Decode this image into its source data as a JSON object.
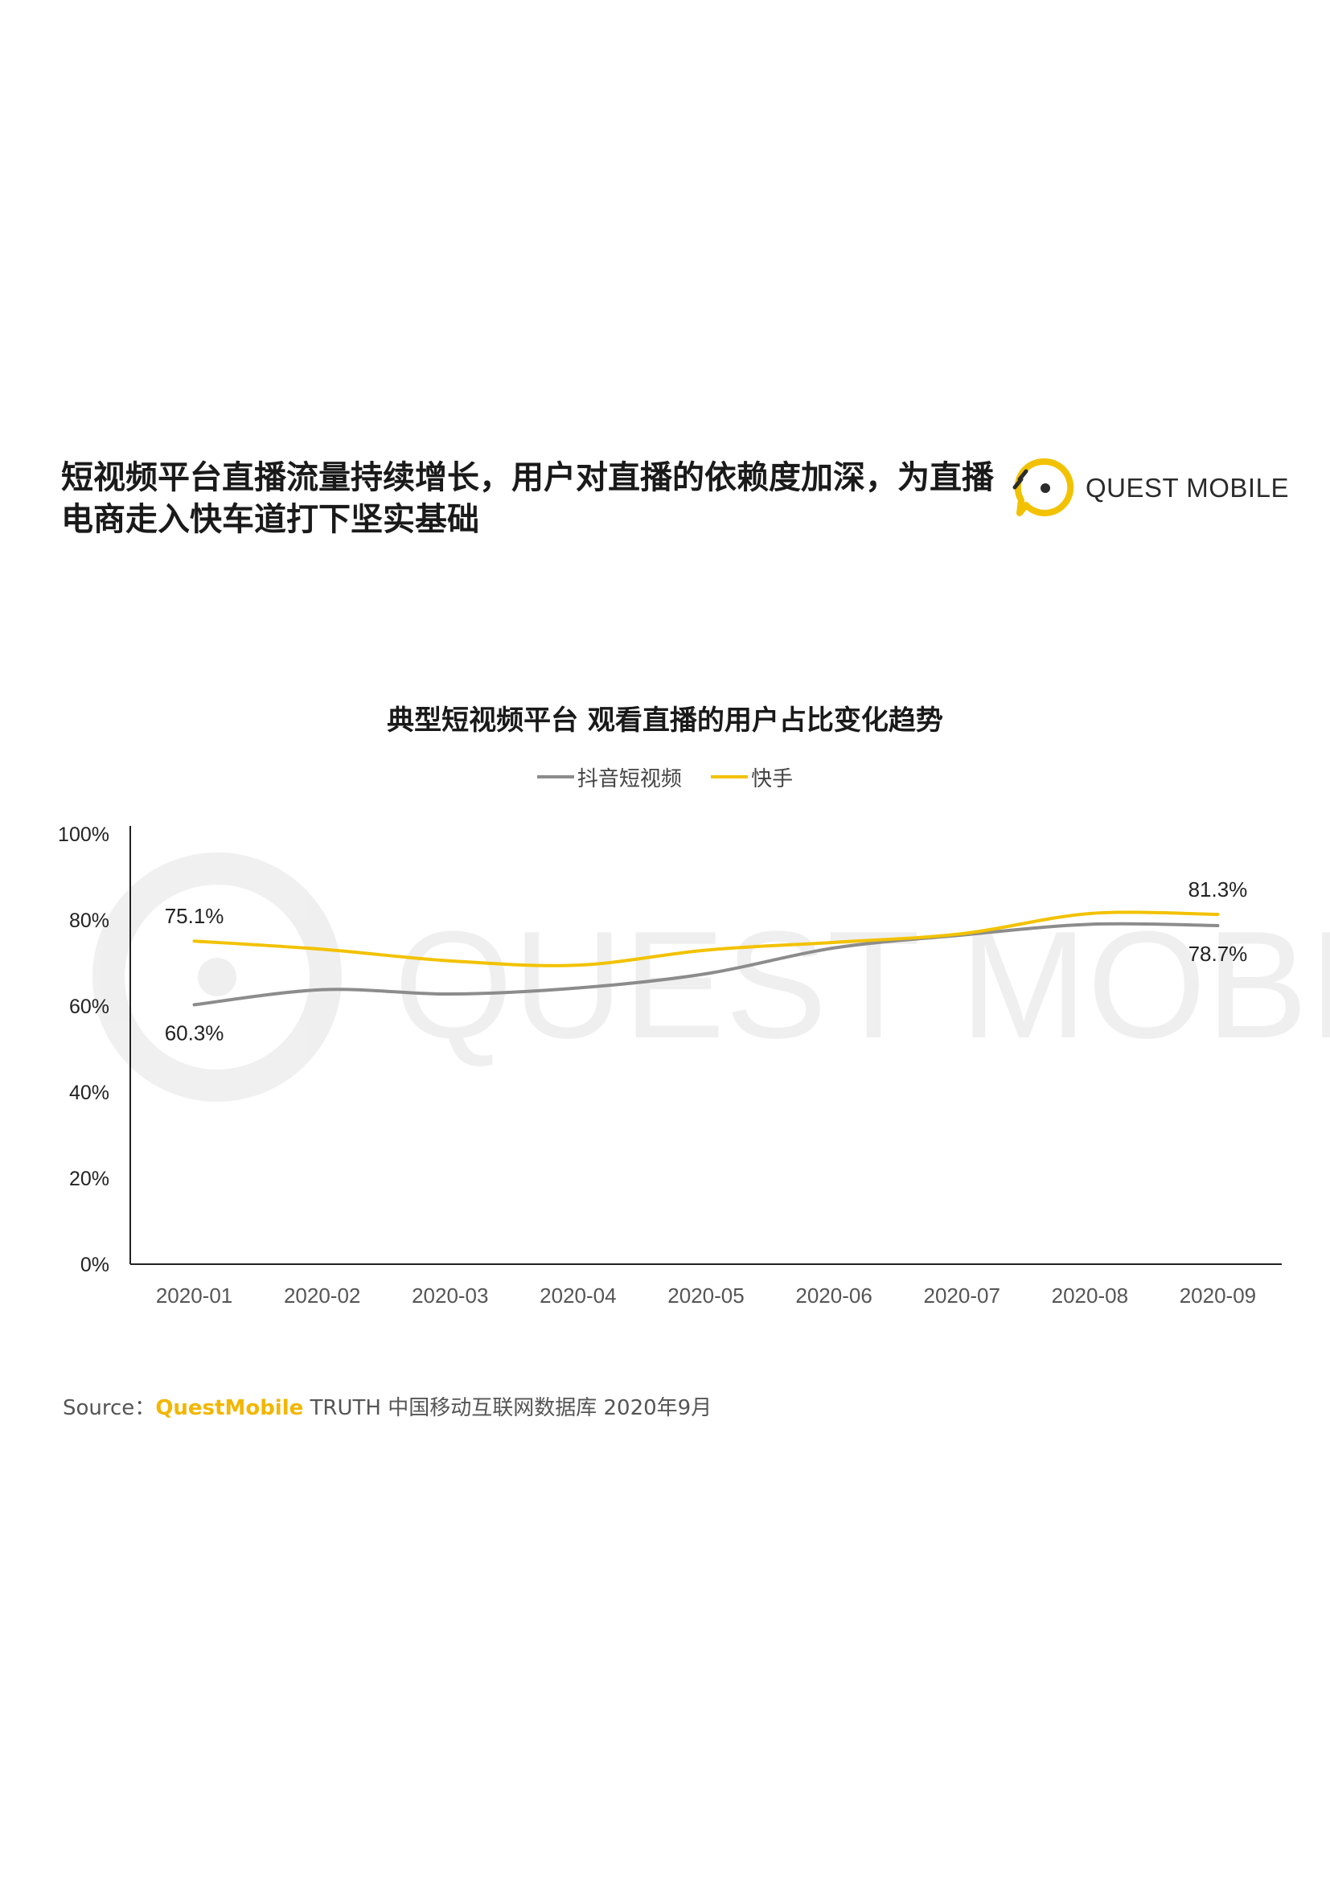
{
  "headline": "短视频平台直播流量持续增长，用户对直播的依赖度加深，为直播电商走入快车道打下坚实基础",
  "logo": {
    "text": "QUEST MOBILE",
    "watermark": "QUEST MOBILE",
    "accent": "#f2c200",
    "icon": "quest-mobile-speech-bubble-icon"
  },
  "source": {
    "prefix": "Source：",
    "brand": "QuestMobile",
    "suffix": " TRUTH 中国移动互联网数据库 2020年9月"
  },
  "chart_data": {
    "type": "line",
    "title": "典型短视频平台 观看直播的用户占比变化趋势",
    "categories": [
      "2020-01",
      "2020-02",
      "2020-03",
      "2020-04",
      "2020-05",
      "2020-06",
      "2020-07",
      "2020-08",
      "2020-09"
    ],
    "yticks": [
      "0%",
      "20%",
      "40%",
      "60%",
      "80%",
      "100%"
    ],
    "ylim": [
      0,
      100
    ],
    "grid": false,
    "legend_position": "top-center",
    "series": [
      {
        "name": "抖音短视频",
        "color": "#8c8c8c",
        "values": [
          60.3,
          63.8,
          62.8,
          64.2,
          67.5,
          73.5,
          76.5,
          79.0,
          78.7
        ],
        "labels": [
          {
            "index": 0,
            "text": "60.3%",
            "pos": "below"
          },
          {
            "index": 8,
            "text": "78.7%",
            "pos": "below"
          }
        ]
      },
      {
        "name": "快手",
        "color": "#f2c200",
        "values": [
          75.1,
          73.2,
          70.5,
          69.5,
          73.0,
          74.8,
          76.8,
          81.5,
          81.3
        ],
        "labels": [
          {
            "index": 0,
            "text": "75.1%",
            "pos": "above"
          },
          {
            "index": 8,
            "text": "81.3%",
            "pos": "above"
          }
        ]
      }
    ]
  }
}
